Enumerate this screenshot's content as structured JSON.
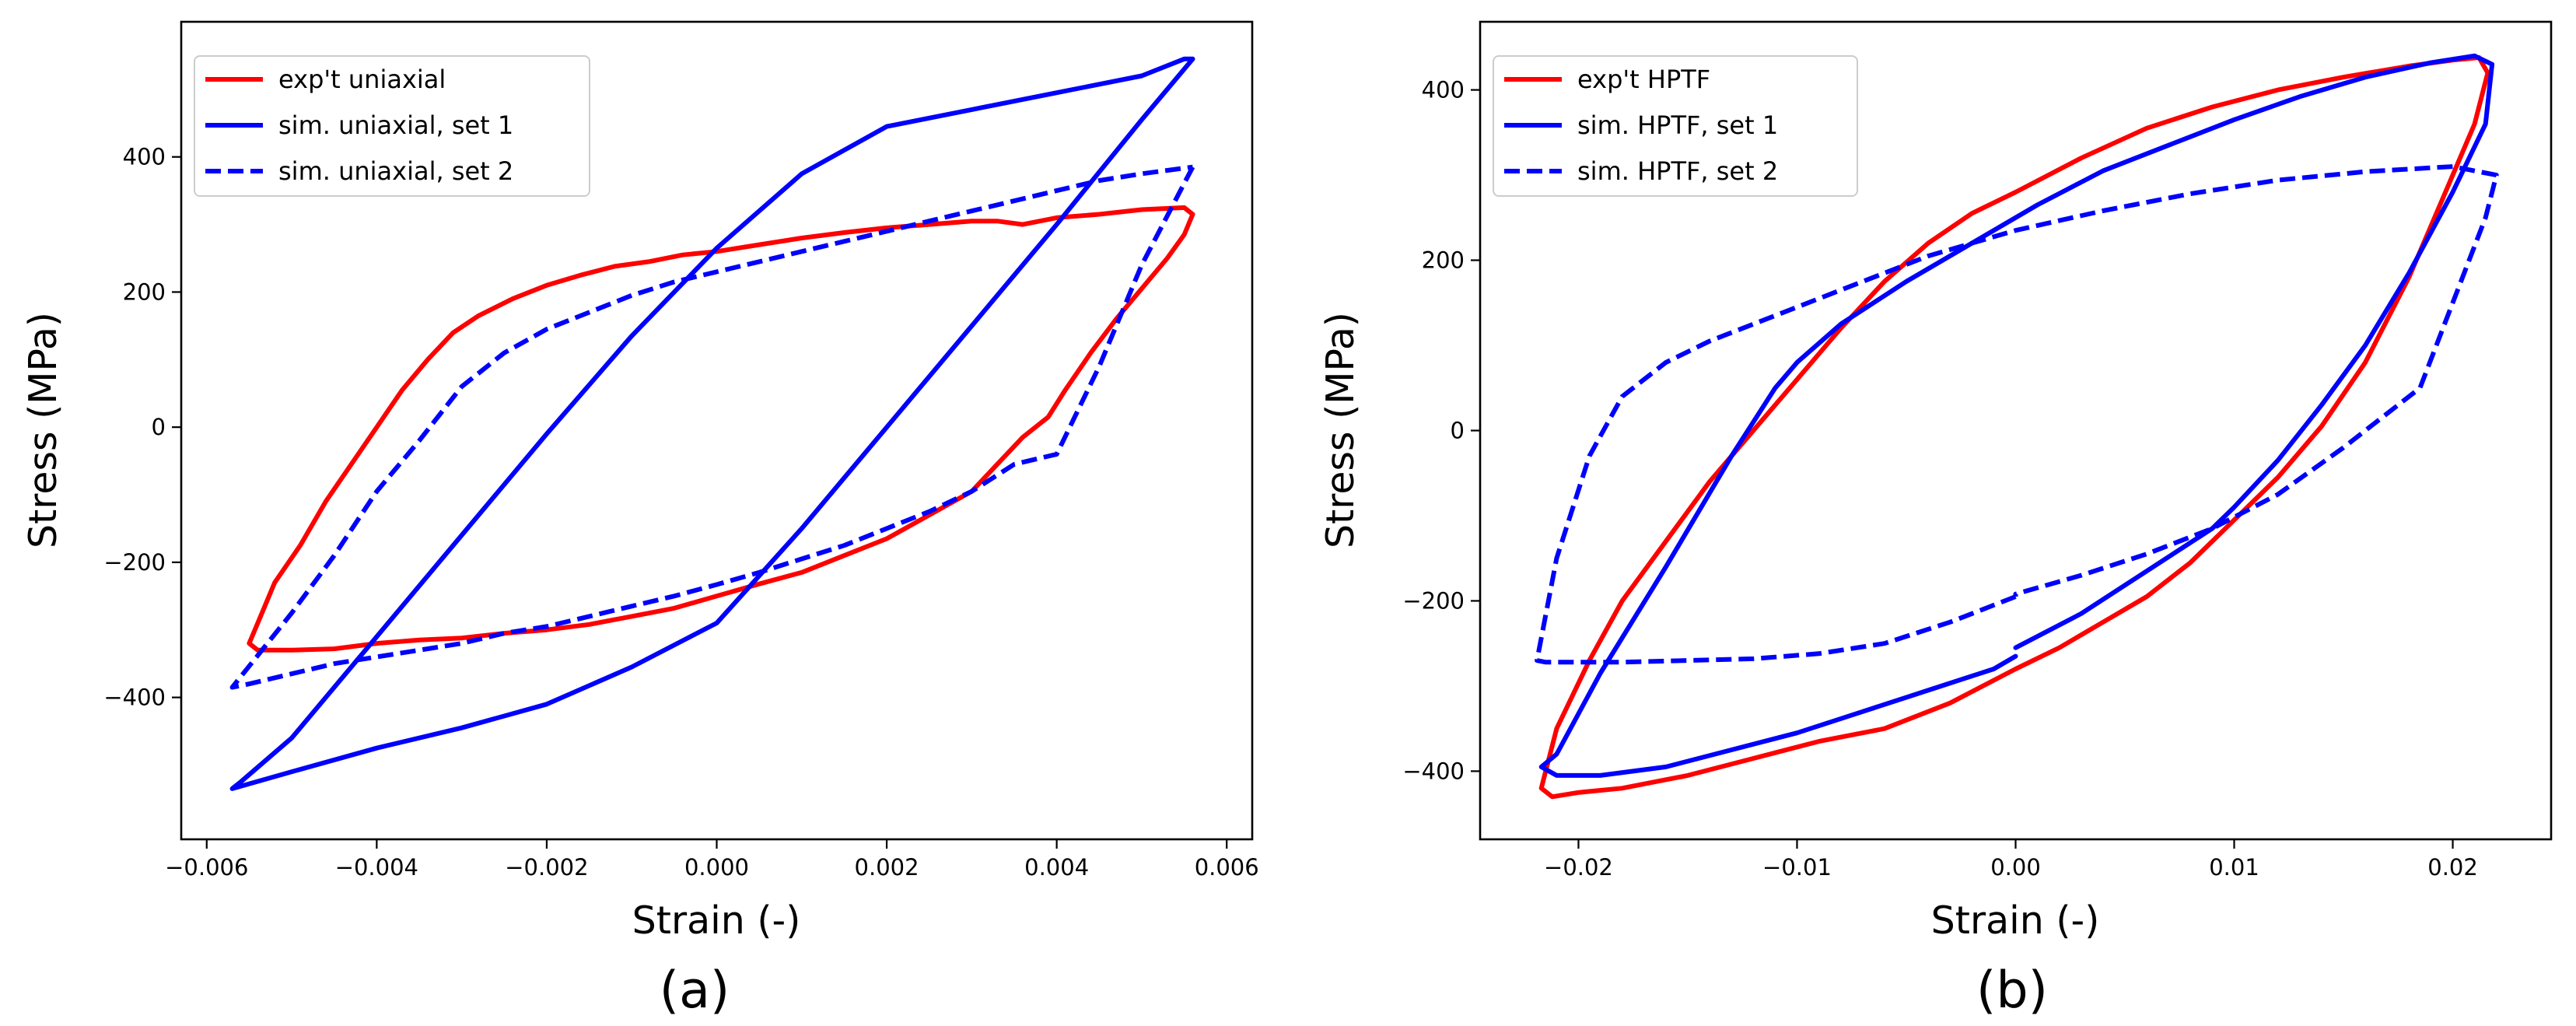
{
  "chart_data": [
    {
      "type": "line",
      "panel_label": "(a)",
      "xlabel": "Strain (-)",
      "ylabel": "Stress (MPa)",
      "xlim": [
        -0.0063,
        0.0063
      ],
      "ylim": [
        -610,
        600
      ],
      "xticks": [
        -0.006,
        -0.004,
        -0.002,
        0.0,
        0.002,
        0.004,
        0.006
      ],
      "xtick_labels": [
        "−0.006",
        "−0.004",
        "−0.002",
        "0.000",
        "0.002",
        "0.004",
        "0.006"
      ],
      "yticks": [
        -400,
        -200,
        0,
        200,
        400
      ],
      "ytick_labels": [
        "−400",
        "−200",
        "0",
        "200",
        "400"
      ],
      "legend_position": "top-left",
      "series": [
        {
          "name": "exp't uniaxial",
          "color": "#ff0000",
          "dash": "solid",
          "x": [
            0.0056,
            0.0055,
            0.0053,
            0.005,
            0.0047,
            0.0044,
            0.0041,
            0.0039,
            0.0036,
            0.0033,
            0.003,
            0.0025,
            0.002,
            0.0015,
            0.001,
            0.0005,
            0.0,
            -0.0005,
            -0.001,
            -0.0015,
            -0.002,
            -0.0025,
            -0.003,
            -0.0035,
            -0.004,
            -0.0045,
            -0.005,
            -0.0054,
            -0.0055,
            -0.0054,
            -0.0052,
            -0.0049,
            -0.0046,
            -0.0043,
            -0.004,
            -0.0037,
            -0.0034,
            -0.0031,
            -0.0028,
            -0.0024,
            -0.002,
            -0.0016,
            -0.0012,
            -0.0008,
            -0.0004,
            0.0,
            0.0005,
            0.001,
            0.0015,
            0.002,
            0.0025,
            0.003,
            0.0033,
            0.0036,
            0.004,
            0.0045,
            0.005,
            0.0055,
            0.0056
          ],
          "y": [
            315,
            285,
            250,
            205,
            160,
            110,
            55,
            15,
            -15,
            -55,
            -95,
            -130,
            -165,
            -190,
            -215,
            -232,
            -250,
            -268,
            -280,
            -292,
            -300,
            -305,
            -312,
            -315,
            -320,
            -328,
            -330,
            -330,
            -320,
            -290,
            -230,
            -175,
            -110,
            -55,
            0,
            55,
            100,
            140,
            165,
            190,
            210,
            225,
            238,
            245,
            255,
            260,
            270,
            280,
            288,
            295,
            300,
            305,
            305,
            300,
            310,
            315,
            322,
            325,
            315
          ]
        },
        {
          "name": "sim. uniaxial, set 1",
          "color": "#0000ff",
          "dash": "solid",
          "x": [
            0.0056,
            0.005,
            0.004,
            0.003,
            0.002,
            0.001,
            0.0,
            -0.001,
            -0.002,
            -0.003,
            -0.004,
            -0.005,
            -0.0057,
            -0.0056,
            -0.005,
            -0.004,
            -0.003,
            -0.002,
            -0.001,
            0.0,
            0.001,
            0.002,
            0.003,
            0.004,
            0.005,
            0.0055,
            0.0056
          ],
          "y": [
            545,
            455,
            300,
            150,
            0,
            -150,
            -290,
            -355,
            -410,
            -445,
            -475,
            -510,
            -535,
            -525,
            -460,
            -310,
            -160,
            -10,
            135,
            265,
            375,
            445,
            470,
            495,
            520,
            545,
            545
          ]
        },
        {
          "name": "sim. uniaxial, set 2",
          "color": "#0000ff",
          "dash": "dashed",
          "x": [
            0.0056,
            0.005,
            0.0045,
            0.004,
            0.0035,
            0.003,
            0.0025,
            0.002,
            0.0015,
            0.001,
            0.0005,
            0.0,
            -0.0005,
            -0.001,
            -0.0015,
            -0.002,
            -0.0025,
            -0.003,
            -0.0035,
            -0.004,
            -0.0045,
            -0.005,
            -0.0055,
            -0.0057,
            -0.005,
            -0.0045,
            -0.004,
            -0.0035,
            -0.003,
            -0.0025,
            -0.002,
            -0.0015,
            -0.001,
            -0.0005,
            0.0,
            0.0005,
            0.001,
            0.0015,
            0.002,
            0.0025,
            0.003,
            0.0035,
            0.004,
            0.0045,
            0.005,
            0.0056
          ],
          "y": [
            385,
            240,
            90,
            -40,
            -55,
            -95,
            -125,
            -150,
            -175,
            -195,
            -215,
            -233,
            -250,
            -265,
            -280,
            -295,
            -305,
            -320,
            -330,
            -340,
            -350,
            -365,
            -380,
            -385,
            -275,
            -190,
            -95,
            -20,
            60,
            110,
            145,
            170,
            195,
            215,
            230,
            245,
            260,
            275,
            290,
            305,
            320,
            335,
            350,
            365,
            375,
            385
          ]
        }
      ]
    },
    {
      "type": "line",
      "panel_label": "(b)",
      "xlabel": "Strain (-)",
      "ylabel": "Stress (MPa)",
      "xlim": [
        -0.0245,
        0.0245
      ],
      "ylim": [
        -480,
        480
      ],
      "xticks": [
        -0.02,
        -0.01,
        0.0,
        0.01,
        0.02
      ],
      "xtick_labels": [
        "−0.02",
        "−0.01",
        "0.00",
        "0.01",
        "0.02"
      ],
      "yticks": [
        -400,
        -200,
        0,
        200,
        400
      ],
      "ytick_labels": [
        "−400",
        "−200",
        "0",
        "200",
        "400"
      ],
      "legend_position": "top-left",
      "series": [
        {
          "name": "exp't HPTF",
          "color": "#ff0000",
          "dash": "solid",
          "x": [
            -0.0217,
            -0.021,
            -0.0195,
            -0.018,
            -0.016,
            -0.014,
            -0.012,
            -0.01,
            -0.008,
            -0.006,
            -0.004,
            -0.002,
            0.0,
            0.003,
            0.006,
            0.009,
            0.012,
            0.015,
            0.018,
            0.02,
            0.0212,
            0.0216,
            0.021,
            0.0195,
            0.018,
            0.016,
            0.014,
            0.012,
            0.01,
            0.008,
            0.006,
            0.004,
            0.002,
            0.0,
            -0.003,
            -0.006,
            -0.009,
            -0.012,
            -0.015,
            -0.018,
            -0.02,
            -0.0212,
            -0.0217
          ],
          "y": [
            -420,
            -350,
            -270,
            -200,
            -130,
            -60,
            0,
            60,
            120,
            175,
            220,
            255,
            280,
            320,
            355,
            380,
            400,
            415,
            428,
            435,
            438,
            420,
            360,
            270,
            180,
            80,
            5,
            -55,
            -105,
            -155,
            -195,
            -225,
            -255,
            -280,
            -320,
            -350,
            -365,
            -385,
            -405,
            -420,
            -425,
            -430,
            -420
          ]
        },
        {
          "name": "sim. HPTF, set 1",
          "color": "#0000ff",
          "dash": "solid",
          "x": [
            0.0,
            0.003,
            0.006,
            0.009,
            0.01,
            0.012,
            0.014,
            0.016,
            0.018,
            0.02,
            0.0215,
            0.0218,
            0.021,
            0.019,
            0.016,
            0.013,
            0.01,
            0.007,
            0.004,
            0.001,
            -0.002,
            -0.005,
            -0.008,
            -0.01,
            -0.011,
            -0.013,
            -0.016,
            -0.019,
            -0.021,
            -0.0217,
            -0.021,
            -0.019,
            -0.016,
            -0.013,
            -0.01,
            -0.007,
            -0.004,
            -0.001,
            0.0
          ],
          "y": [
            -255,
            -215,
            -165,
            -115,
            -90,
            -35,
            30,
            100,
            185,
            280,
            360,
            430,
            440,
            432,
            415,
            392,
            365,
            335,
            305,
            265,
            220,
            175,
            125,
            80,
            50,
            -30,
            -160,
            -285,
            -380,
            -395,
            -405,
            -405,
            -395,
            -375,
            -355,
            -330,
            -305,
            -280,
            -265
          ]
        },
        {
          "name": "sim. HPTF, set 2",
          "color": "#0000ff",
          "dash": "dashed",
          "x": [
            0.0,
            -0.003,
            -0.006,
            -0.009,
            -0.012,
            -0.015,
            -0.018,
            -0.02,
            -0.0215,
            -0.0219,
            -0.021,
            -0.0195,
            -0.018,
            -0.016,
            -0.014,
            -0.012,
            -0.01,
            -0.008,
            -0.006,
            -0.004,
            -0.002,
            0.0,
            0.004,
            0.008,
            0.012,
            0.016,
            0.02,
            0.022,
            0.0215,
            0.02,
            0.0185,
            0.017,
            0.015,
            0.012,
            0.009,
            0.006,
            0.003,
            0.0,
            0.0
          ],
          "y": [
            -195,
            -225,
            -250,
            -262,
            -268,
            -270,
            -272,
            -272,
            -272,
            -270,
            -150,
            -30,
            40,
            80,
            105,
            125,
            145,
            165,
            185,
            205,
            220,
            235,
            258,
            278,
            294,
            304,
            310,
            300,
            250,
            150,
            50,
            20,
            -20,
            -75,
            -115,
            -145,
            -170,
            -192,
            -195
          ]
        }
      ]
    }
  ]
}
